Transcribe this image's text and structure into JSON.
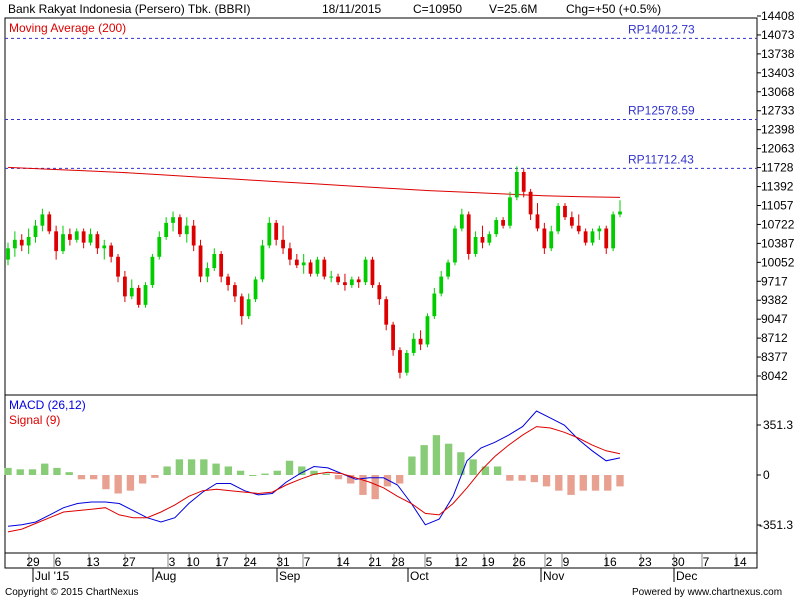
{
  "header": {
    "title": "Bank Rakyat Indonesia (Persero) Tbk. (BBRI)",
    "date": "18/11/2015",
    "close": "C=10950",
    "volume": "V=25.6M",
    "change": "Chg=+50 (+0.5%)"
  },
  "footer": {
    "copyright": "Copyright © 2015 ChartNexus",
    "powered": "Powered by www.chartnexus.com"
  },
  "colors": {
    "up": "#00cc00",
    "down": "#dd0000",
    "ma": "#dd0000",
    "macd": "#0000dd",
    "signal": "#dd0000",
    "hist_pos": "#88cc77",
    "hist_neg": "#e8a090",
    "resistance": "#3333cc"
  },
  "chart_data": [
    {
      "type": "candlestick",
      "title": "Bank Rakyat Indonesia (Persero) Tbk. (BBRI)",
      "series_label": "Moving Average (200)",
      "y_ticks": [
        "14408",
        "14073",
        "13738",
        "13403",
        "13068",
        "12733",
        "12398",
        "12063",
        "11728",
        "11392",
        "11057",
        "10722",
        "10387",
        "10052",
        "9717",
        "9382",
        "9047",
        "8712",
        "8377",
        "8042"
      ],
      "ylim": [
        7750,
        14500
      ],
      "x_ticks": [
        "29",
        "6",
        "13",
        "27",
        "3",
        "10",
        "17",
        "24",
        "31",
        "7",
        "14",
        "21",
        "28",
        "5",
        "12",
        "19",
        "26",
        "2",
        "9",
        "16",
        "23",
        "30",
        "7",
        "14"
      ],
      "x_months": [
        "Jul '15",
        "Aug",
        "Sep",
        "Oct",
        "Nov",
        "Dec"
      ],
      "resistance_levels": [
        {
          "label": "RP14012.73",
          "value": 14012.73
        },
        {
          "label": "RP12578.59",
          "value": 12578.59
        },
        {
          "label": "RP11712.43",
          "value": 11712.43
        }
      ],
      "candles": [
        [
          10100,
          10400,
          10000,
          10300
        ],
        [
          10300,
          10600,
          10150,
          10450
        ],
        [
          10450,
          10550,
          10250,
          10350
        ],
        [
          10350,
          10650,
          10200,
          10500
        ],
        [
          10500,
          10800,
          10400,
          10700
        ],
        [
          10700,
          11000,
          10600,
          10900
        ],
        [
          10900,
          10950,
          10550,
          10600
        ],
        [
          10600,
          10700,
          10100,
          10250
        ],
        [
          10250,
          10700,
          10200,
          10550
        ],
        [
          10550,
          10650,
          10350,
          10450
        ],
        [
          10450,
          10650,
          10400,
          10600
        ],
        [
          10600,
          10650,
          10300,
          10400
        ],
        [
          10400,
          10650,
          10350,
          10550
        ],
        [
          10550,
          10600,
          10200,
          10300
        ],
        [
          10300,
          10450,
          10100,
          10350
        ],
        [
          10350,
          10400,
          10050,
          10150
        ],
        [
          10150,
          10200,
          9700,
          9800
        ],
        [
          9800,
          9900,
          9350,
          9450
        ],
        [
          9450,
          9750,
          9400,
          9600
        ],
        [
          9600,
          9650,
          9250,
          9300
        ],
        [
          9300,
          9700,
          9250,
          9650
        ],
        [
          9650,
          10200,
          9600,
          10150
        ],
        [
          10150,
          10600,
          10100,
          10500
        ],
        [
          10500,
          10850,
          10450,
          10750
        ],
        [
          10750,
          10950,
          10600,
          10850
        ],
        [
          10850,
          10900,
          10500,
          10550
        ],
        [
          10550,
          10850,
          10400,
          10700
        ],
        [
          10700,
          10800,
          10250,
          10350
        ],
        [
          10350,
          10450,
          9700,
          9800
        ],
        [
          9800,
          10050,
          9700,
          9950
        ],
        [
          9950,
          10300,
          9900,
          10200
        ],
        [
          10200,
          10250,
          9700,
          9800
        ],
        [
          9800,
          9850,
          9550,
          9650
        ],
        [
          9650,
          9700,
          9350,
          9450
        ],
        [
          9450,
          9500,
          8950,
          9100
        ],
        [
          9100,
          9500,
          9050,
          9400
        ],
        [
          9400,
          9800,
          9350,
          9750
        ],
        [
          9750,
          10450,
          9700,
          10350
        ],
        [
          10350,
          10850,
          10300,
          10750
        ],
        [
          10750,
          10800,
          10350,
          10450
        ],
        [
          10450,
          10700,
          10200,
          10300
        ],
        [
          10300,
          10400,
          10000,
          10100
        ],
        [
          10100,
          10200,
          9950,
          10000
        ],
        [
          10000,
          10200,
          9850,
          10050
        ],
        [
          10050,
          10100,
          9800,
          9850
        ],
        [
          9850,
          10150,
          9800,
          10100
        ],
        [
          10100,
          10150,
          9750,
          9800
        ],
        [
          9800,
          9900,
          9700,
          9800
        ],
        [
          9800,
          9850,
          9650,
          9700
        ],
        [
          9700,
          9850,
          9550,
          9650
        ],
        [
          9650,
          9800,
          9600,
          9750
        ],
        [
          9750,
          9800,
          9600,
          9700
        ],
        [
          9700,
          10150,
          9650,
          10100
        ],
        [
          10100,
          10150,
          9600,
          9650
        ],
        [
          9650,
          9700,
          9300,
          9400
        ],
        [
          9400,
          9450,
          8850,
          8950
        ],
        [
          8950,
          9000,
          8400,
          8500
        ],
        [
          8500,
          8550,
          8000,
          8100
        ],
        [
          8100,
          8500,
          8050,
          8450
        ],
        [
          8450,
          8800,
          8400,
          8700
        ],
        [
          8700,
          8850,
          8500,
          8600
        ],
        [
          8600,
          9150,
          8550,
          9100
        ],
        [
          9100,
          9600,
          9050,
          9500
        ],
        [
          9500,
          9900,
          9450,
          9800
        ],
        [
          9800,
          10100,
          9750,
          10050
        ],
        [
          10050,
          10700,
          10000,
          10650
        ],
        [
          10650,
          11000,
          10600,
          10900
        ],
        [
          10900,
          10950,
          10100,
          10200
        ],
        [
          10200,
          10600,
          10150,
          10500
        ],
        [
          10500,
          10700,
          10300,
          10400
        ],
        [
          10400,
          10600,
          10350,
          10550
        ],
        [
          10550,
          10850,
          10500,
          10800
        ],
        [
          10800,
          10850,
          10650,
          10700
        ],
        [
          10700,
          11300,
          10650,
          11200
        ],
        [
          11200,
          11750,
          11150,
          11650
        ],
        [
          11650,
          11700,
          11200,
          11300
        ],
        [
          11300,
          11350,
          10800,
          10900
        ],
        [
          10900,
          11100,
          10600,
          10650
        ],
        [
          10650,
          10750,
          10200,
          10300
        ],
        [
          10300,
          10700,
          10250,
          10600
        ],
        [
          10600,
          11100,
          10550,
          11050
        ],
        [
          11050,
          11100,
          10800,
          10850
        ],
        [
          10850,
          10950,
          10650,
          10700
        ],
        [
          10700,
          10900,
          10550,
          10600
        ],
        [
          10600,
          10650,
          10350,
          10400
        ],
        [
          10400,
          10650,
          10350,
          10600
        ],
        [
          10600,
          10700,
          10450,
          10650
        ],
        [
          10650,
          10700,
          10200,
          10300
        ],
        [
          10300,
          10950,
          10250,
          10900
        ],
        [
          10900,
          11150,
          10850,
          10950
        ]
      ],
      "moving_average": [
        11730,
        11700,
        11670,
        11640,
        11600,
        11560,
        11520,
        11480,
        11440,
        11400,
        11360,
        11320,
        11290,
        11260,
        11230,
        11210,
        11200
      ]
    },
    {
      "type": "line",
      "series_label_macd": "MACD (26,12)",
      "series_label_signal": "Signal (9)",
      "y_ticks": [
        "351.3",
        "0",
        "-351.3"
      ],
      "ylim": [
        -550,
        500
      ],
      "series": [
        {
          "name": "MACD (26,12)",
          "values": [
            -360,
            -350,
            -330,
            -280,
            -230,
            -200,
            -190,
            -190,
            -200,
            -250,
            -300,
            -330,
            -300,
            -200,
            -120,
            -60,
            -60,
            -110,
            -140,
            -130,
            -50,
            10,
            60,
            50,
            10,
            -30,
            -20,
            -20,
            -70,
            -200,
            -350,
            -310,
            -150,
            100,
            190,
            230,
            280,
            340,
            450,
            400,
            350,
            250,
            170,
            100,
            120
          ]
        },
        {
          "name": "Signal (9)",
          "values": [
            -400,
            -380,
            -340,
            -300,
            -260,
            -250,
            -240,
            -230,
            -280,
            -300,
            -300,
            -260,
            -210,
            -150,
            -110,
            -100,
            -110,
            -120,
            -130,
            -120,
            -70,
            -30,
            5,
            20,
            10,
            -20,
            -50,
            -90,
            -150,
            -200,
            -270,
            -280,
            -200,
            -90,
            30,
            130,
            210,
            280,
            340,
            330,
            300,
            260,
            210,
            170,
            150
          ]
        }
      ],
      "histogram": [
        50,
        40,
        40,
        80,
        50,
        20,
        -30,
        -30,
        -100,
        -130,
        -110,
        -60,
        -20,
        60,
        110,
        110,
        110,
        80,
        60,
        30,
        0,
        10,
        30,
        100,
        60,
        30,
        10,
        -30,
        -60,
        -140,
        -170,
        -80,
        -60,
        130,
        210,
        280,
        220,
        160,
        110,
        60,
        60,
        -40,
        -40,
        -50,
        -80,
        -110,
        -140,
        -110,
        -110,
        -110,
        -80
      ]
    }
  ]
}
